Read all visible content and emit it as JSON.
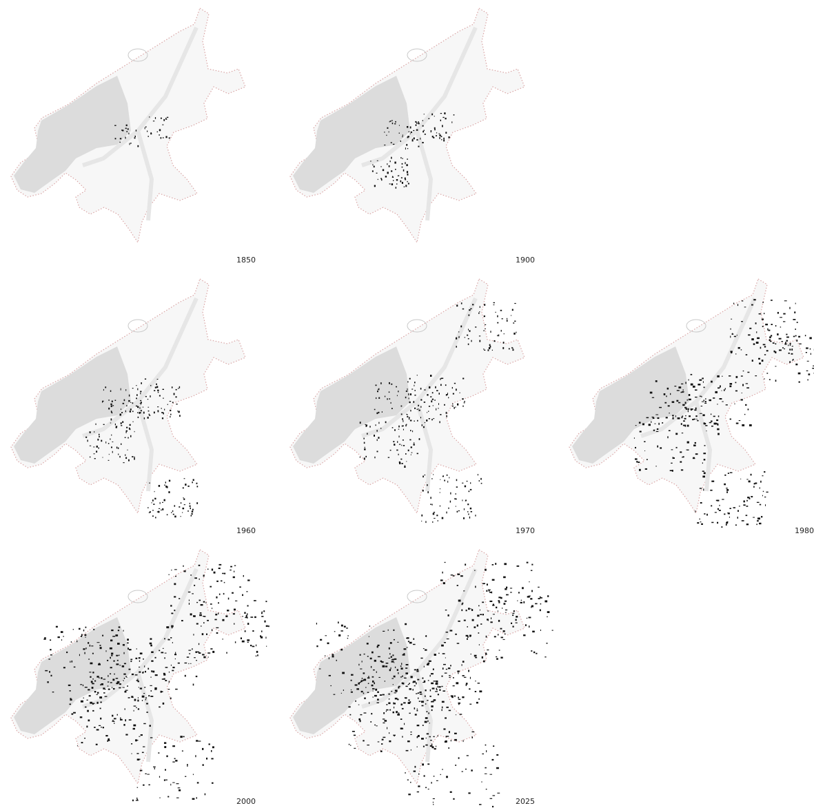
{
  "panels": [
    {
      "year": "1850"
    },
    {
      "year": "1900"
    },
    {
      "year": "1960"
    },
    {
      "year": "1970"
    },
    {
      "year": "1980"
    },
    {
      "year": "2000"
    },
    {
      "year": "2025"
    }
  ]
}
